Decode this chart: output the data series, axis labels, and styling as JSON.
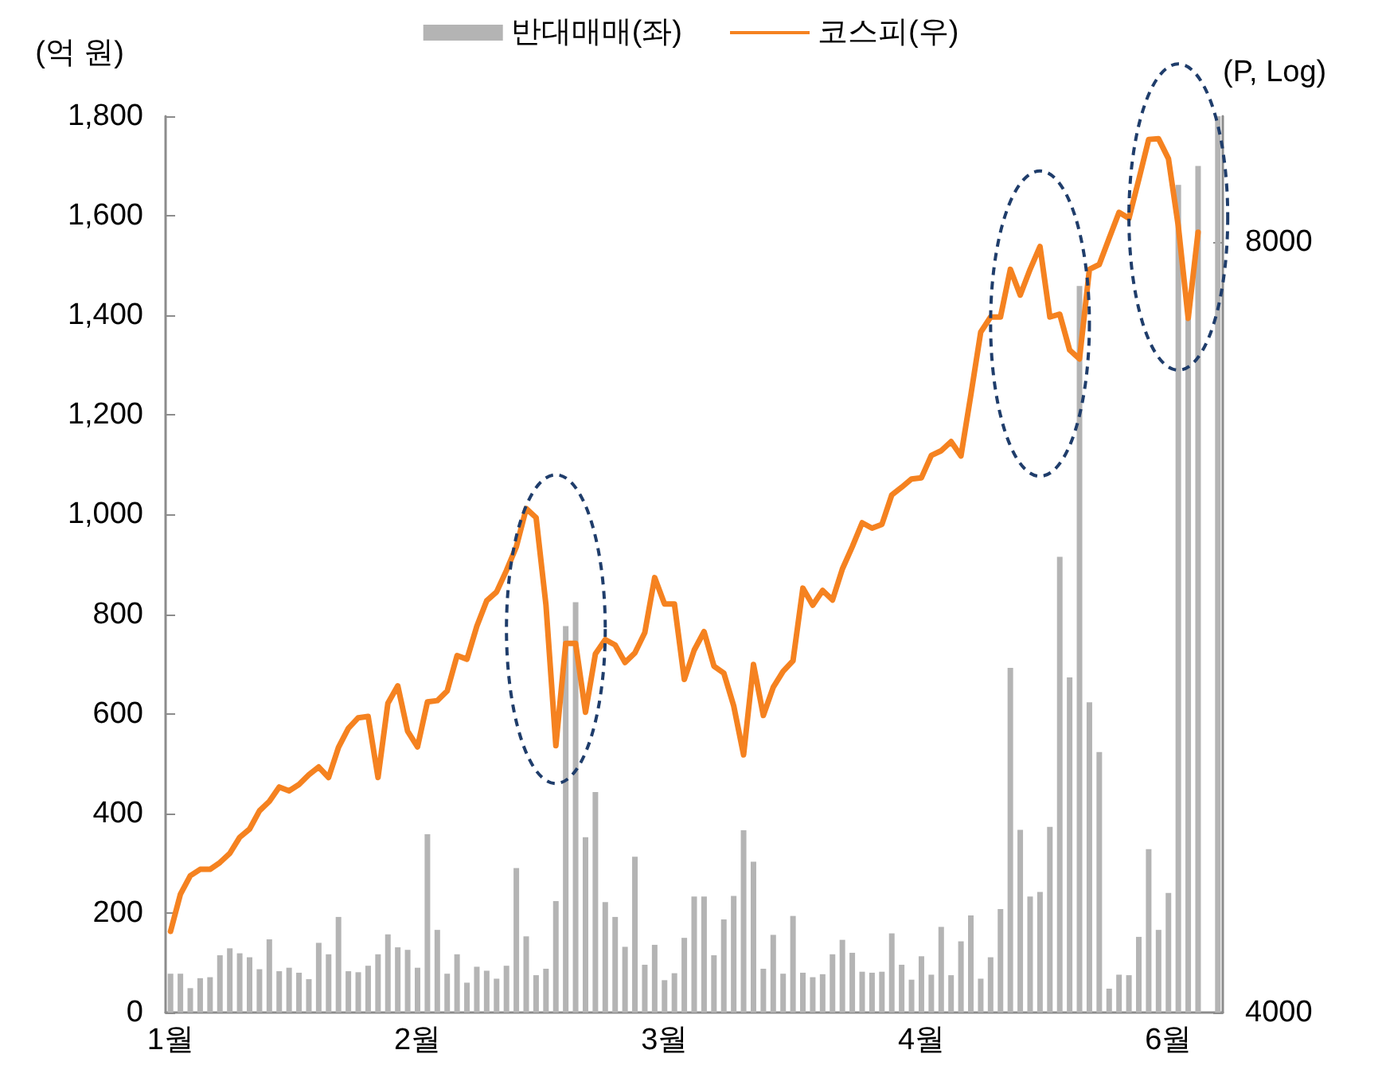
{
  "chart_data": {
    "type": "bar",
    "categories": [
      "1월",
      null,
      null,
      null,
      null,
      null,
      null,
      null,
      null,
      null,
      null,
      null,
      null,
      null,
      null,
      null,
      null,
      null,
      null,
      null,
      null,
      null,
      null,
      null,
      null,
      "2월",
      null,
      null,
      null,
      null,
      null,
      null,
      null,
      null,
      null,
      null,
      null,
      null,
      null,
      null,
      null,
      null,
      null,
      null,
      null,
      null,
      null,
      null,
      null,
      null,
      "3월",
      null,
      null,
      null,
      null,
      null,
      null,
      null,
      null,
      null,
      null,
      null,
      null,
      null,
      null,
      null,
      null,
      null,
      null,
      null,
      null,
      null,
      null,
      null,
      null,
      null,
      "4월",
      null,
      null,
      null,
      null,
      null,
      null,
      null,
      null,
      null,
      null,
      null,
      null,
      null,
      null,
      null,
      null,
      null,
      null,
      null,
      null,
      null,
      null,
      null,
      null,
      "6월",
      null,
      null,
      null,
      null,
      null
    ],
    "series": [
      {
        "name": "반대매매(좌)",
        "color": "#b4b4b4",
        "values": [
          78,
          78,
          49,
          69,
          71,
          115,
          129,
          119,
          111,
          87,
          147,
          83,
          90,
          80,
          67,
          140,
          117,
          192,
          83,
          81,
          94,
          117,
          157,
          131,
          126,
          90,
          358,
          166,
          78,
          117,
          60,
          92,
          84,
          68,
          94,
          290,
          153,
          75,
          88,
          224,
          776,
          824,
          352,
          443,
          222,
          192,
          132,
          313,
          96,
          136,
          65,
          79,
          150,
          233,
          233,
          115,
          187,
          234,
          366,
          303,
          88,
          156,
          78,
          194,
          80,
          71,
          77,
          117,
          146,
          120,
          82,
          80,
          82,
          159,
          96,
          66,
          113,
          76,
          172,
          75,
          143,
          195,
          68,
          111,
          208,
          692,
          367,
          233,
          242,
          373,
          915,
          673,
          1459,
          623,
          523,
          48,
          76,
          75,
          152,
          328,
          166,
          240,
          1662,
          1400,
          1700,
          null,
          1800
        ]
      },
      {
        "name": "코스피(우)",
        "type": "line",
        "axis": "y2",
        "color": "#f58220",
        "values": [
          4303,
          4449,
          4524,
          4550,
          4550,
          4578,
          4616,
          4683,
          4718,
          4796,
          4837,
          4900,
          4883,
          4911,
          4954,
          4989,
          4942,
          5078,
          5166,
          5215,
          5221,
          4942,
          5283,
          5367,
          5152,
          5080,
          5290,
          5296,
          5342,
          5515,
          5497,
          5662,
          5794,
          5840,
          5954,
          6082,
          6295,
          6244,
          5771,
          5086,
          5576,
          5576,
          5241,
          5523,
          5595,
          5568,
          5481,
          5528,
          5630,
          5916,
          5777,
          5777,
          5398,
          5542,
          5635,
          5463,
          5429,
          5271,
          5044,
          5471,
          5226,
          5360,
          5437,
          5489,
          5860,
          5771,
          5848,
          5798,
          5962,
          6082,
          6215,
          6185,
          6206,
          6373,
          6417,
          6465,
          6472,
          6603,
          6631,
          6686,
          6600,
          6972,
          7378,
          7479,
          7479,
          7807,
          7628,
          7807,
          7969,
          7479,
          7498,
          7260,
          7202,
          7807,
          7841,
          8028,
          8217,
          8173,
          8464,
          8775,
          8780,
          8624,
          8115,
          7470,
          8072,
          null,
          null
        ]
      }
    ],
    "ylabel": "(억 원)",
    "y2label": "(P, Log)",
    "ylim": [
      0,
      1800
    ],
    "yticks": [
      0,
      200,
      400,
      600,
      800,
      {
        "value": 1000,
        "label": "1,000"
      },
      {
        "value": 1200,
        "label": "1,200"
      },
      {
        "value": 1400,
        "label": "1,400"
      },
      {
        "value": 1600,
        "label": "1,600"
      },
      {
        "value": 1800,
        "label": "1,800"
      }
    ],
    "y2lim": [
      4000,
      8960
    ],
    "y2ticks": [
      4000,
      8000
    ],
    "log": "y2",
    "grid": false,
    "legend": "top",
    "line_style": "solid"
  }
}
